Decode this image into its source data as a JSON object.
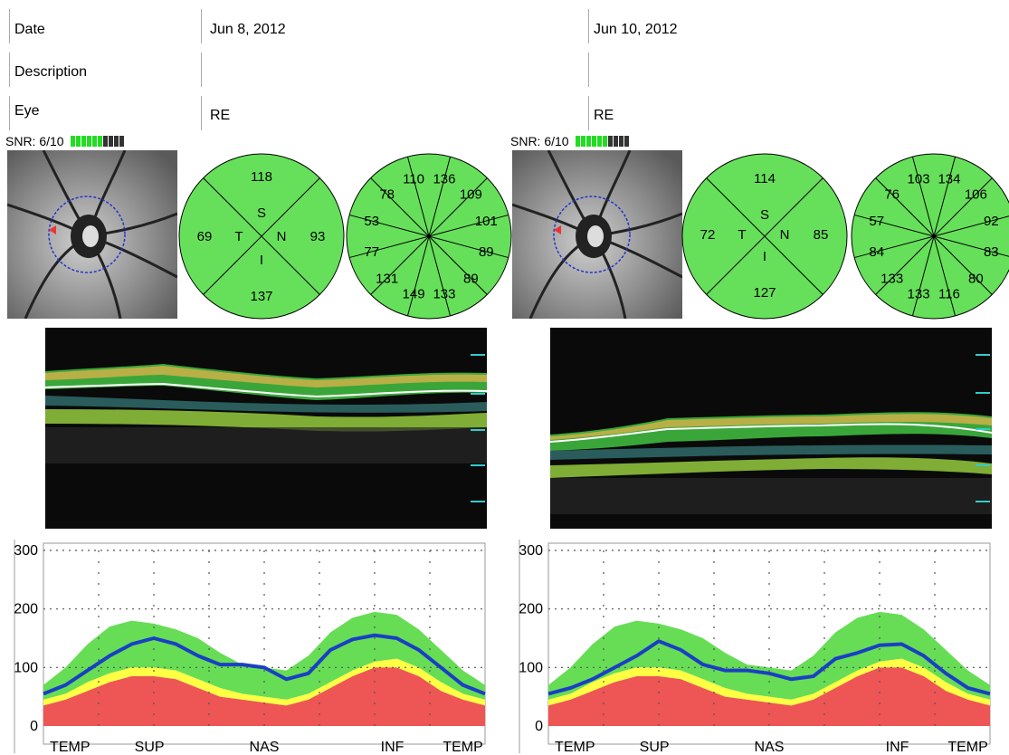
{
  "header": {
    "rows": [
      {
        "label": "Date",
        "left_value": "Jun 8, 2012",
        "right_value": "Jun 10, 2012"
      },
      {
        "label": "Description",
        "left_value": "",
        "right_value": ""
      },
      {
        "label": "Eye",
        "left_value": "RE",
        "right_value": "RE"
      }
    ]
  },
  "colors": {
    "sector_fill": "#66e05a",
    "normal_green": "#66dd55",
    "borderline_yellow": "#ffff44",
    "abnormal_red": "#ee5555",
    "rnfl_line": "#1a3fc4"
  },
  "panels": [
    {
      "snr_label": "SNR: 6/10",
      "snr_value": 6,
      "snr_max": 10,
      "quadrants": {
        "S": "S",
        "T": "T",
        "N": "N",
        "I": "I",
        "sup": "118",
        "temp": "69",
        "nas": "93",
        "inf": "137"
      },
      "clock_hours": [
        "110",
        "136",
        "109",
        "101",
        "89",
        "89",
        "133",
        "149",
        "131",
        "77",
        "53",
        "78"
      ]
    },
    {
      "snr_label": "SNR: 6/10",
      "snr_value": 6,
      "snr_max": 10,
      "quadrants": {
        "S": "S",
        "T": "T",
        "N": "N",
        "I": "I",
        "sup": "114",
        "temp": "72",
        "nas": "85",
        "inf": "127"
      },
      "clock_hours": [
        "103",
        "134",
        "106",
        "92",
        "83",
        "80",
        "116",
        "133",
        "133",
        "84",
        "57",
        "76"
      ]
    }
  ],
  "chart_data": [
    {
      "type": "area",
      "y_ticks": [
        "300",
        "200",
        "100",
        "0"
      ],
      "ylim": [
        0,
        300
      ],
      "x_tick_labels": [
        "TEMP",
        "SUP",
        "NAS",
        "INF",
        "TEMP"
      ],
      "x": [
        0,
        0.05,
        0.1,
        0.15,
        0.2,
        0.25,
        0.3,
        0.35,
        0.4,
        0.45,
        0.5,
        0.55,
        0.6,
        0.65,
        0.7,
        0.75,
        0.8,
        0.85,
        0.9,
        0.95,
        1
      ],
      "series": [
        {
          "values": [
            55,
            70,
            95,
            120,
            140,
            150,
            140,
            120,
            105,
            105,
            100,
            80,
            90,
            130,
            148,
            155,
            150,
            130,
            100,
            70,
            55
          ]
        }
      ],
      "normative_bands": {
        "red_top": [
          35,
          45,
          60,
          75,
          85,
          85,
          80,
          65,
          50,
          45,
          40,
          35,
          45,
          65,
          85,
          100,
          100,
          85,
          60,
          45,
          35
        ],
        "yellow_top": [
          45,
          55,
          75,
          90,
          100,
          100,
          95,
          80,
          65,
          55,
          50,
          45,
          55,
          75,
          95,
          110,
          115,
          100,
          75,
          55,
          45
        ],
        "green_top": [
          70,
          100,
          140,
          170,
          180,
          175,
          165,
          150,
          125,
          105,
          100,
          95,
          120,
          160,
          185,
          195,
          190,
          165,
          130,
          95,
          70
        ]
      }
    },
    {
      "type": "area",
      "y_ticks": [
        "300",
        "200",
        "100",
        "0"
      ],
      "ylim": [
        0,
        300
      ],
      "x_tick_labels": [
        "TEMP",
        "SUP",
        "NAS",
        "INF",
        "TEMP"
      ],
      "x": [
        0,
        0.05,
        0.1,
        0.15,
        0.2,
        0.25,
        0.3,
        0.35,
        0.4,
        0.45,
        0.5,
        0.55,
        0.6,
        0.65,
        0.7,
        0.75,
        0.8,
        0.85,
        0.9,
        0.95,
        1
      ],
      "series": [
        {
          "values": [
            55,
            65,
            80,
            100,
            120,
            145,
            130,
            105,
            95,
            95,
            90,
            80,
            85,
            115,
            125,
            138,
            140,
            120,
            90,
            65,
            55
          ]
        }
      ],
      "normative_bands": {
        "red_top": [
          35,
          45,
          60,
          75,
          85,
          85,
          80,
          65,
          50,
          45,
          40,
          35,
          45,
          65,
          85,
          100,
          100,
          85,
          60,
          45,
          35
        ],
        "yellow_top": [
          45,
          55,
          75,
          90,
          100,
          100,
          95,
          80,
          65,
          55,
          50,
          45,
          55,
          75,
          95,
          110,
          115,
          100,
          75,
          55,
          45
        ],
        "green_top": [
          70,
          100,
          140,
          170,
          180,
          175,
          165,
          150,
          125,
          105,
          100,
          95,
          120,
          160,
          185,
          195,
          190,
          165,
          130,
          95,
          70
        ]
      }
    }
  ]
}
